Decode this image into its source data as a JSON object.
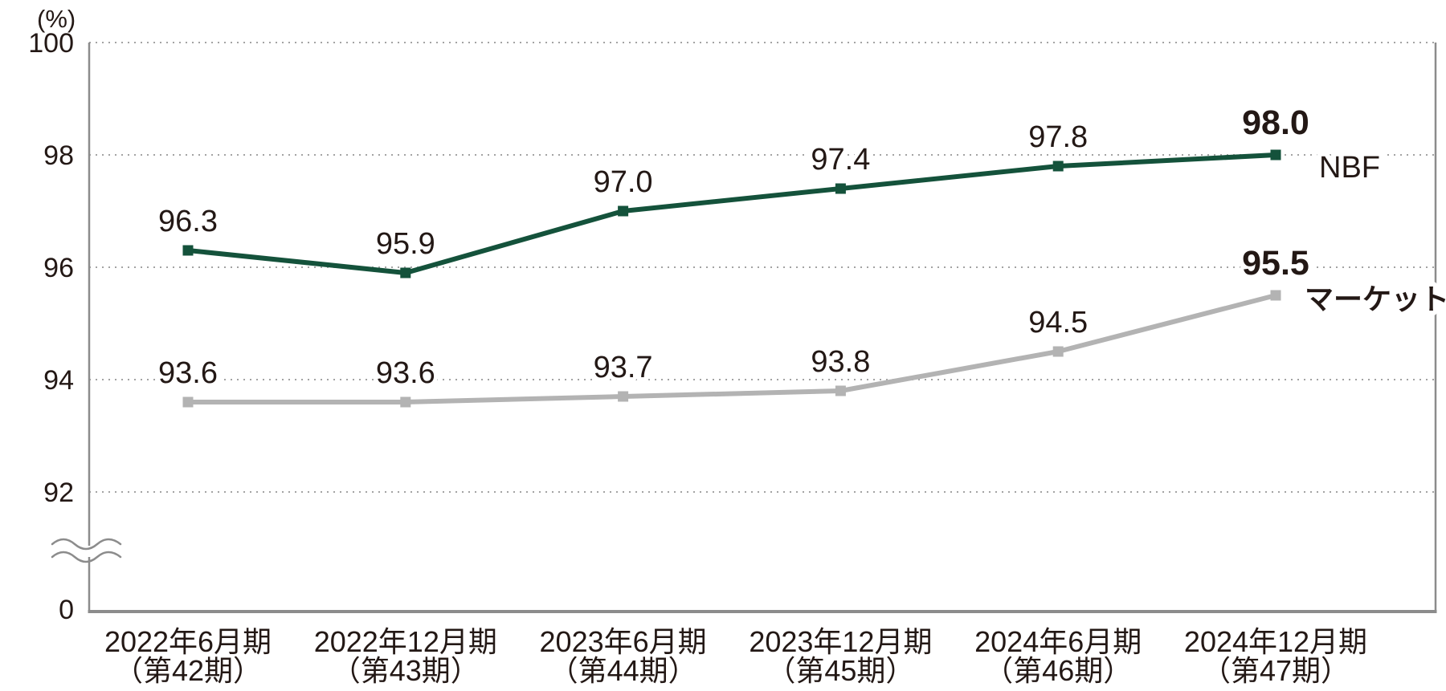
{
  "chart_data": {
    "type": "line",
    "unit_label": "(%)",
    "grid": "dotted-horizontal",
    "legend_position": "right-of-last-point",
    "y_axis": {
      "ticks": [
        100,
        98,
        96,
        94,
        92
      ],
      "zero_label": "0",
      "axis_break": true,
      "display_range": [
        92,
        100
      ],
      "full_range_start": 0
    },
    "categories": [
      {
        "line1": "2022年6月期",
        "line2": "（第42期）"
      },
      {
        "line1": "2022年12月期",
        "line2": "（第43期）"
      },
      {
        "line1": "2023年6月期",
        "line2": "（第44期）"
      },
      {
        "line1": "2023年12月期",
        "line2": "（第45期）"
      },
      {
        "line1": "2024年6月期",
        "line2": "（第46期）"
      },
      {
        "line1": "2024年12月期",
        "line2": "（第47期）"
      }
    ],
    "series": [
      {
        "name": "NBF",
        "color": "#14523B",
        "legend_color": "#1A5A40",
        "values": [
          96.3,
          95.9,
          97.0,
          97.4,
          97.8,
          98.0
        ]
      },
      {
        "name": "マーケット",
        "color": "#B3B3B3",
        "legend_color": "#ABABAB",
        "values": [
          93.6,
          93.6,
          93.7,
          93.8,
          94.5,
          95.5
        ]
      }
    ],
    "value_label_color": "#231815",
    "emphasize_last_value": true
  },
  "colors": {
    "axis": "#8C8C8C",
    "gridline": "#A3A3A3",
    "background": "#FFFFFF",
    "text": "#231815"
  }
}
